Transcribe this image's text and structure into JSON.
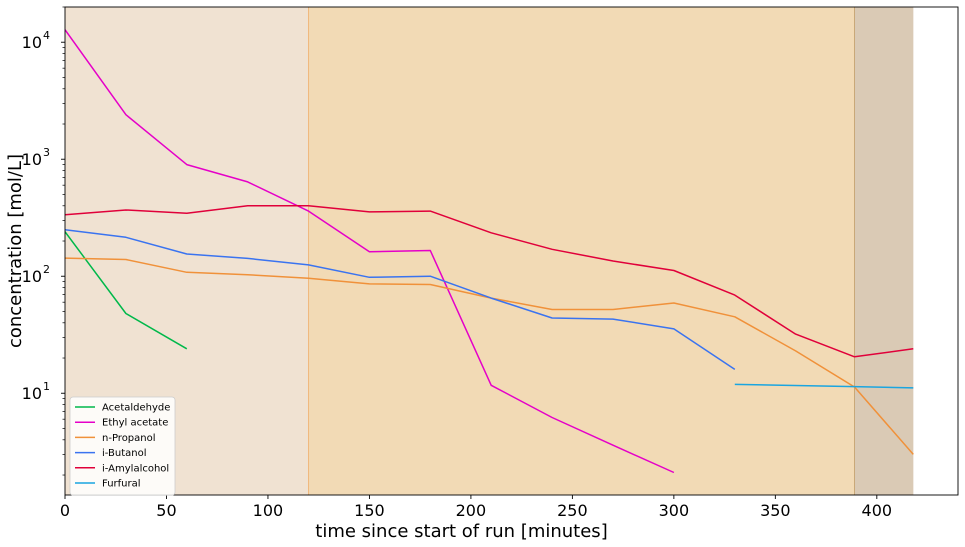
{
  "chart_data": {
    "type": "line",
    "xlabel": "time since start of run [minutes]",
    "ylabel": "concentration [mol/L]",
    "xlim": [
      0,
      440
    ],
    "ylim": [
      1.35,
      20000
    ],
    "yscale": "log",
    "grid": false,
    "legend_position": "lower-left",
    "x_ticks": [
      0,
      50,
      100,
      150,
      200,
      250,
      300,
      350,
      400
    ],
    "y_ticks": [
      {
        "value": 10,
        "base": "10",
        "exp": "1"
      },
      {
        "value": 100,
        "base": "10",
        "exp": "2"
      },
      {
        "value": 1000,
        "base": "10",
        "exp": "3"
      },
      {
        "value": 10000,
        "base": "10",
        "exp": "4"
      }
    ],
    "phases": [
      {
        "x0": 0,
        "x1": 120,
        "color": "#f0e2d2"
      },
      {
        "x0": 120,
        "x1": 389,
        "color": "#f2dab5"
      },
      {
        "x0": 389,
        "x1": 418,
        "color": "#dacab5"
      }
    ],
    "phase_boundaries": [
      {
        "x": 120,
        "color": "#f0b77a"
      },
      {
        "x": 389,
        "color": "#c9a878"
      }
    ],
    "series": [
      {
        "name": "Acetaldehyde",
        "color": "#00b84a",
        "x": [
          0,
          30,
          60
        ],
        "y": [
          240,
          48,
          24
        ]
      },
      {
        "name": "Ethyl acetate",
        "color": "#e500c8",
        "x": [
          0,
          30,
          60,
          90,
          120,
          150,
          180,
          210,
          240,
          270,
          300
        ],
        "y": [
          12800,
          2400,
          900,
          640,
          360,
          162,
          166,
          11.7,
          6.2,
          3.6,
          2.1
        ]
      },
      {
        "name": "n-Propanol",
        "color": "#f0913a",
        "x": [
          0,
          30,
          60,
          90,
          120,
          150,
          180,
          210,
          240,
          270,
          300,
          330,
          360,
          389,
          418
        ],
        "y": [
          143,
          139,
          108,
          103,
          96,
          86,
          85,
          65,
          52,
          52,
          59,
          45,
          23,
          11.3,
          3.0
        ]
      },
      {
        "name": "i-Butanol",
        "color": "#3a73f0",
        "x": [
          0,
          30,
          60,
          90,
          120,
          150,
          180,
          210,
          240,
          270,
          300,
          330
        ],
        "y": [
          250,
          215,
          155,
          142,
          125,
          98,
          100,
          65,
          44,
          43,
          35.5,
          16
        ]
      },
      {
        "name": "i-Amylalcohol",
        "color": "#e0003a",
        "x": [
          0,
          30,
          60,
          90,
          120,
          150,
          180,
          210,
          240,
          270,
          300,
          330,
          360,
          389,
          418
        ],
        "y": [
          335,
          368,
          345,
          400,
          400,
          355,
          360,
          235,
          170,
          135,
          112,
          69,
          32,
          20.5,
          24
        ]
      },
      {
        "name": "Furfural",
        "color": "#1aa5e0",
        "x": [
          330,
          389,
          418
        ],
        "y": [
          11.9,
          11.4,
          11.1
        ]
      }
    ]
  }
}
